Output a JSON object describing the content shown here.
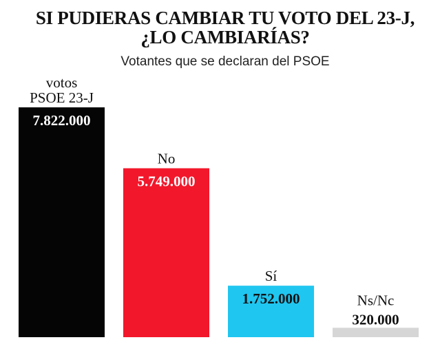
{
  "chart_data": {
    "type": "bar",
    "title": [
      "SI PUDIERAS CAMBIAR TU VOTO DEL 23-J,",
      "¿LO CAMBIARÍAS?"
    ],
    "subtitle": "Votantes que se declaran del PSOE",
    "categories": [
      [
        "votos",
        "PSOE 23-J"
      ],
      [
        "No"
      ],
      [
        "Sí"
      ],
      [
        "Ns/Nc"
      ]
    ],
    "values": [
      7822000,
      5749000,
      1752000,
      320000
    ],
    "value_labels": [
      "7.822.000",
      "5.749.000",
      "1.752.000",
      "320.000"
    ],
    "colors": [
      "#050505",
      "#f2172b",
      "#1fc6f0",
      "#d6d6d6"
    ],
    "value_label_colors": [
      "#ffffff",
      "#ffffff",
      "#111111",
      "#111111"
    ],
    "value_label_position": [
      "inside",
      "inside",
      "inside",
      "above"
    ],
    "xlabel": "",
    "ylabel": "",
    "grid": false,
    "legend": "none"
  }
}
